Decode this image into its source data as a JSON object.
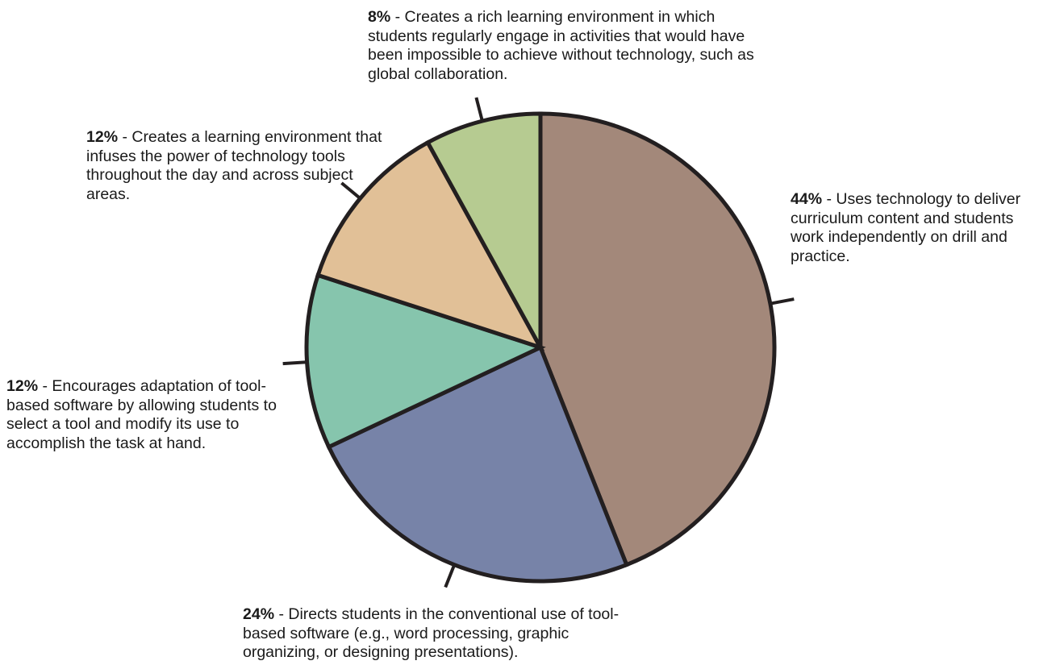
{
  "chart_data": {
    "type": "pie",
    "title": "",
    "slices": [
      {
        "value": 44,
        "pct_label": "44%",
        "text": " - Uses technology to deliver curriculum content and students work independently on drill and practice.",
        "color": "#a3887a"
      },
      {
        "value": 24,
        "pct_label": "24%",
        "text": " - Directs students in the conventional use of tool-based software (e.g., word processing, graphic organizing, or designing presentations).",
        "color": "#7783a8"
      },
      {
        "value": 12,
        "pct_label": "12%",
        "text": " - Encourages adaptation of tool-based software by allowing students to select a tool and modify its use to accomplish the task at hand.",
        "color": "#86c5ad"
      },
      {
        "value": 12,
        "pct_label": "12%",
        "text": " - Creates a learning environment that infuses the power of technology tools throughout the day and across subject areas.",
        "color": "#e1c097"
      },
      {
        "value": 8,
        "pct_label": "8%",
        "text": " - Creates a rich learning environment in which students regularly engage in activities that would have been impossible to achieve without technology, such as global collaboration.",
        "color": "#b6cb91"
      }
    ],
    "outline_color": "#231f20"
  }
}
